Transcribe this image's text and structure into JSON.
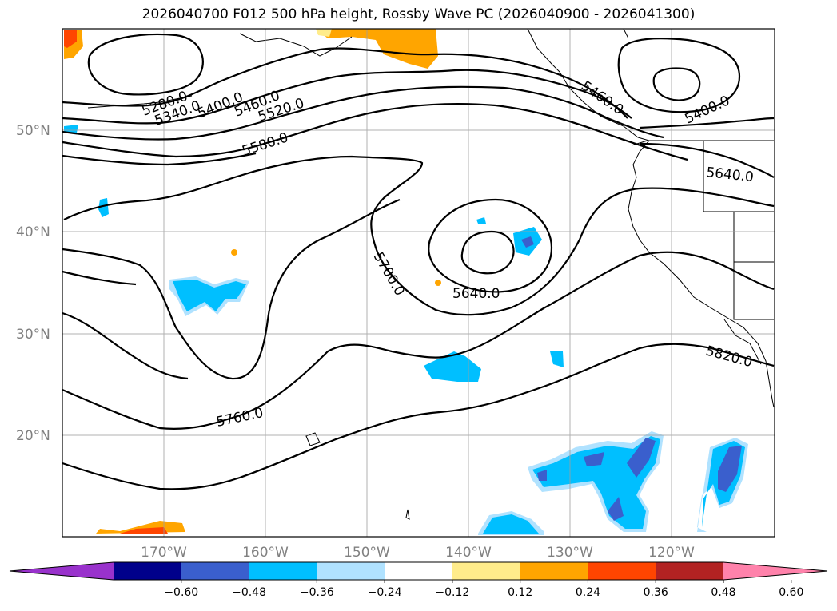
{
  "title": "2026040700 F012 500 hPa height, Rossby Wave PC (2026040900 - 2026041300)",
  "map": {
    "lon_range": [
      -180,
      -110
    ],
    "lat_range": [
      10,
      60
    ],
    "lat_labels": [
      "50°N",
      "40°N",
      "30°N",
      "20°N"
    ],
    "lon_labels": [
      "170°W",
      "160°W",
      "150°W",
      "140°W",
      "130°W",
      "120°W"
    ],
    "gridlines": true
  },
  "contours": {
    "labels": [
      "5280.0",
      "5340.0",
      "5400.0",
      "5460.0",
      "5520.0",
      "5580.0",
      "5700.0",
      "5640.0",
      "5760.0",
      "5820.0",
      "5460.0",
      "5400.0",
      "5640.0"
    ]
  },
  "colorbar": {
    "ticks": [
      "−0.60",
      "−0.48",
      "−0.36",
      "−0.24",
      "−0.12",
      "0.12",
      "0.24",
      "0.36",
      "0.48",
      "0.60"
    ],
    "colors": [
      "#9932cc",
      "#00008b",
      "#3a5fcd",
      "#00bfff",
      "#b0e2ff",
      "#ffffff",
      "#ffec8b",
      "#ffa500",
      "#ff4500",
      "#b22222",
      "#ff82ab"
    ]
  }
}
